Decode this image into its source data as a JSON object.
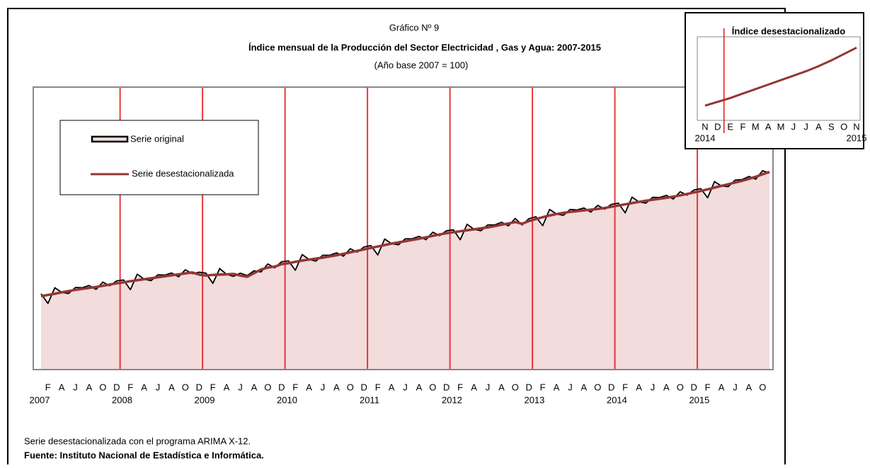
{
  "chart_data": {
    "type": "line",
    "super_title": "Gráfico Nº 9",
    "title": "Índice mensual de la Producción del Sector Electricidad , Gas y Agua: 2007-2015",
    "subtitle": "(Año base 2007 = 100)",
    "categories": [
      null,
      "F",
      null,
      "A",
      null,
      "J",
      null,
      "A",
      null,
      "O",
      null,
      "D",
      null,
      "F",
      null,
      "A",
      null,
      "J",
      null,
      "A",
      null,
      "O",
      null,
      "D",
      null,
      "F",
      null,
      "A",
      null,
      "J",
      null,
      "A",
      null,
      "O",
      null,
      "D",
      null,
      "F",
      null,
      "A",
      null,
      "J",
      null,
      "A",
      null,
      "O",
      null,
      "D",
      null,
      "F",
      null,
      "A",
      null,
      "J",
      null,
      "A",
      null,
      "O",
      null,
      "D",
      null,
      "F",
      null,
      "A",
      null,
      "J",
      null,
      "A",
      null,
      "O",
      null,
      "D",
      null,
      "F",
      null,
      "A",
      null,
      "J",
      null,
      "A",
      null,
      "O",
      null,
      "D",
      null,
      "F",
      null,
      "A",
      null,
      "J",
      null,
      "A",
      null,
      "O",
      null,
      "D",
      null,
      "F",
      null,
      "A",
      null,
      "J",
      null,
      "A",
      null,
      "O",
      null
    ],
    "years": [
      "2007",
      null,
      null,
      null,
      null,
      null,
      null,
      null,
      null,
      null,
      null,
      null,
      "2008",
      null,
      null,
      null,
      null,
      null,
      null,
      null,
      null,
      null,
      null,
      null,
      "2009",
      null,
      null,
      null,
      null,
      null,
      null,
      null,
      null,
      null,
      null,
      null,
      "2010",
      null,
      null,
      null,
      null,
      null,
      null,
      null,
      null,
      null,
      null,
      null,
      "2011",
      null,
      null,
      null,
      null,
      null,
      null,
      null,
      null,
      null,
      null,
      null,
      "2012",
      null,
      null,
      null,
      null,
      null,
      null,
      null,
      null,
      null,
      null,
      null,
      "2013",
      null,
      null,
      null,
      null,
      null,
      null,
      null,
      null,
      null,
      null,
      null,
      "2014",
      null,
      null,
      null,
      null,
      null,
      null,
      null,
      null,
      null,
      null,
      null,
      "2015",
      null,
      null,
      null,
      null,
      null,
      null,
      null,
      null,
      null,
      null
    ],
    "ylim": [
      69,
      185
    ],
    "series": [
      {
        "name": "Serie original",
        "color": "#000000",
        "fill": "#f2dcdc",
        "values": [
          100.0,
          96.0,
          102.5,
          100.6,
          100.1,
          102.6,
          102.5,
          103.4,
          101.8,
          104.8,
          103.3,
          105.3,
          105.7,
          101.7,
          108.1,
          106.0,
          105.4,
          107.8,
          107.7,
          108.6,
          107.0,
          109.9,
          108.3,
          108.9,
          108.5,
          104.3,
          110.4,
          108.0,
          107.2,
          108.5,
          107.5,
          109.5,
          109.0,
          112.3,
          110.7,
          113.2,
          113.6,
          109.7,
          116.2,
          114.1,
          113.5,
          115.9,
          115.9,
          116.9,
          115.5,
          118.6,
          117.2,
          119.3,
          119.9,
          116.0,
          122.6,
          120.7,
          120.2,
          122.7,
          122.7,
          123.7,
          122.3,
          125.4,
          124.0,
          126.0,
          126.4,
          122.3,
          128.7,
          126.6,
          126.0,
          128.4,
          128.4,
          129.5,
          128.0,
          131.1,
          128.4,
          131.0,
          131.8,
          128.1,
          134.8,
          132.9,
          132.4,
          134.8,
          134.6,
          135.4,
          133.7,
          136.5,
          134.9,
          136.9,
          137.4,
          133.4,
          139.9,
          137.9,
          137.4,
          139.8,
          139.7,
          140.6,
          139.1,
          142.1,
          140.7,
          142.8,
          143.4,
          139.6,
          146.3,
          144.5,
          144.2,
          146.9,
          147.1,
          148.4,
          147.3,
          150.8,
          149.8
        ]
      },
      {
        "name": "Serie desestacionalizada",
        "color": "#943634",
        "values": [
          99.0,
          99.5,
          100.0,
          100.6,
          101.1,
          101.6,
          102.0,
          102.4,
          102.8,
          103.3,
          103.8,
          104.3,
          104.7,
          105.2,
          105.6,
          106.0,
          106.4,
          106.8,
          107.2,
          107.6,
          108.0,
          108.4,
          108.8,
          107.9,
          107.5,
          107.8,
          107.9,
          108.0,
          108.2,
          107.5,
          107.0,
          108.5,
          110.0,
          110.8,
          111.2,
          112.2,
          112.6,
          113.2,
          113.7,
          114.1,
          114.5,
          114.9,
          115.4,
          115.9,
          116.5,
          117.1,
          117.7,
          118.3,
          118.9,
          119.5,
          120.1,
          120.7,
          121.2,
          121.7,
          122.2,
          122.7,
          123.3,
          123.9,
          124.5,
          125.0,
          125.4,
          125.8,
          126.2,
          126.6,
          127.0,
          127.4,
          127.9,
          128.5,
          129.0,
          129.6,
          128.9,
          130.0,
          130.8,
          131.6,
          132.3,
          132.9,
          133.4,
          133.8,
          134.1,
          134.4,
          134.7,
          135.0,
          135.4,
          135.9,
          136.4,
          136.9,
          137.4,
          137.9,
          138.4,
          138.8,
          139.2,
          139.6,
          140.1,
          140.6,
          141.2,
          141.8,
          142.4,
          143.1,
          143.8,
          144.5,
          145.2,
          145.9,
          146.6,
          147.4,
          148.3,
          149.3,
          150.3
        ]
      }
    ],
    "inset": {
      "title": "Índice desestacionalizado",
      "categories": [
        "N",
        "D",
        "E",
        "F",
        "M",
        "A",
        "M",
        "J",
        "J",
        "A",
        "S",
        "O",
        "N"
      ],
      "years": [
        "2014",
        null,
        null,
        null,
        null,
        null,
        null,
        null,
        null,
        null,
        null,
        null,
        "2015"
      ],
      "values": [
        141.2,
        141.8,
        142.4,
        143.1,
        143.8,
        144.5,
        145.2,
        145.9,
        146.6,
        147.4,
        148.3,
        149.3,
        150.3
      ],
      "ylim": [
        139,
        152
      ],
      "color": "#943634"
    },
    "notes": [
      "Serie desestacionalizada con el programa ARIMA X-12.",
      "Fuente:  Instituto Nacional de Estadística e Informática."
    ]
  }
}
